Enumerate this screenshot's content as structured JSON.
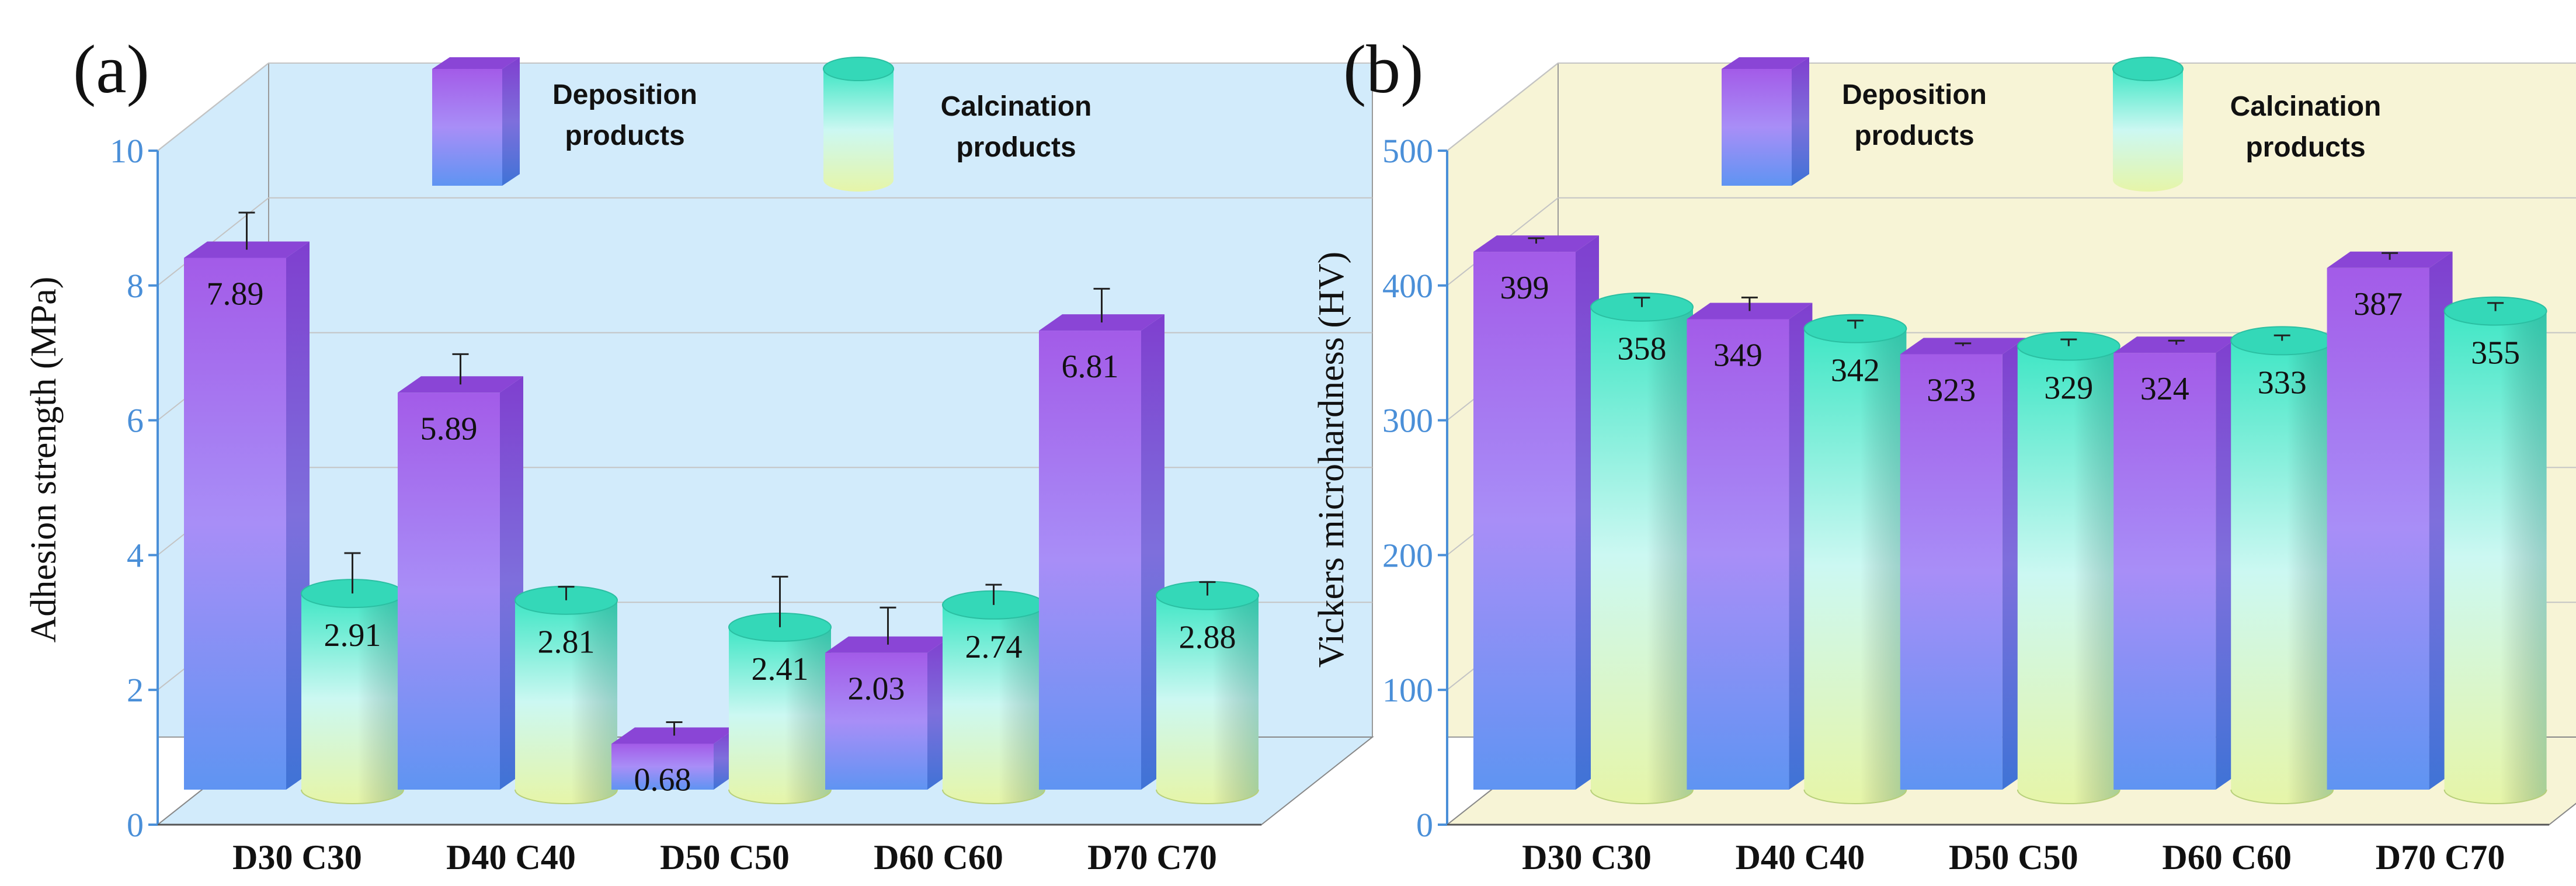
{
  "colors": {
    "panel_a_back": "#d2ebfb",
    "panel_b_back": "#f7f4d6",
    "axis_blue": "#4a8fd8",
    "deposition_top": "#a35be8",
    "deposition_mid": "#a88ef7",
    "deposition_bottom": "#5f94f2",
    "calcination_top": "#3fe6c5",
    "calcination_mid": "#ccf8f2",
    "calcination_bottom": "#e6f5a8"
  },
  "chart_data": [
    {
      "type": "bar",
      "panel_label": "(a)",
      "title": "",
      "xlabel": "",
      "ylabel": "Adhesion strength  (MPa)",
      "ylim": [
        0,
        10
      ],
      "yticks": [
        "0",
        "2",
        "4",
        "6",
        "8",
        "10"
      ],
      "categories": [
        "D30 C30",
        "D40 C40",
        "D50 C50",
        "D60 C60",
        "D70 C70"
      ],
      "series": [
        {
          "name": "Deposition products",
          "legend_lines": [
            "Deposition",
            "products"
          ],
          "shape": "box",
          "values": [
            7.89,
            5.89,
            0.68,
            2.03,
            6.81
          ],
          "labels": [
            "7.89",
            "5.89",
            "0.68",
            "2.03",
            "6.81"
          ],
          "errors": [
            0.55,
            0.45,
            0.2,
            0.55,
            0.5
          ]
        },
        {
          "name": "Calcination products",
          "legend_lines": [
            "Calcination",
            "products"
          ],
          "shape": "cylinder",
          "values": [
            2.91,
            2.81,
            2.41,
            2.74,
            2.88
          ],
          "labels": [
            "2.91",
            "2.81",
            "2.41",
            "2.74",
            "2.88"
          ],
          "errors": [
            0.6,
            0.2,
            0.75,
            0.3,
            0.2
          ]
        }
      ],
      "legend_position": "top-center",
      "grid": true
    },
    {
      "type": "bar",
      "panel_label": "(b)",
      "title": "",
      "xlabel": "",
      "ylabel": "Vickers microhardness (HV)",
      "ylim": [
        0,
        500
      ],
      "yticks": [
        "0",
        "100",
        "200",
        "300",
        "400",
        "500"
      ],
      "categories": [
        "D30 C30",
        "D40 C40",
        "D50 C50",
        "D60 C60",
        "D70 C70"
      ],
      "series": [
        {
          "name": "Deposition products",
          "legend_lines": [
            "Deposition",
            "products"
          ],
          "shape": "box",
          "values": [
            399,
            349,
            323,
            324,
            387
          ],
          "labels": [
            "399",
            "349",
            "323",
            "324",
            "387"
          ],
          "errors": [
            4,
            10,
            2,
            3,
            5
          ]
        },
        {
          "name": "Calcination products",
          "legend_lines": [
            "Calcination",
            "products"
          ],
          "shape": "cylinder",
          "values": [
            358,
            342,
            329,
            333,
            355
          ],
          "labels": [
            "358",
            "342",
            "329",
            "333",
            "355"
          ],
          "errors": [
            7,
            6,
            5,
            4,
            6
          ]
        }
      ],
      "legend_position": "top-center",
      "grid": true
    }
  ]
}
